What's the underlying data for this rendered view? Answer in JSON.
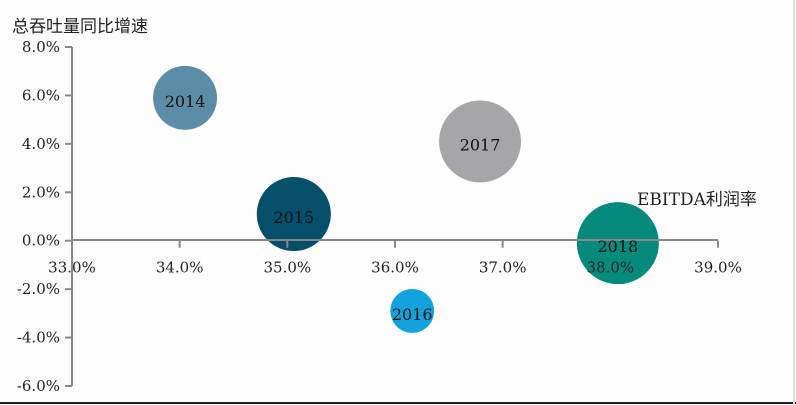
{
  "chart_data": {
    "type": "bubble",
    "title": "",
    "xlabel": "EBITDA利润率",
    "ylabel": "总吞吐量同比增速",
    "xlim": [
      33,
      39
    ],
    "ylim": [
      -6,
      8
    ],
    "x_ticks": [
      "33.0%",
      "34.0%",
      "35.0%",
      "36.0%",
      "37.0%",
      "38.0%",
      "39.0%"
    ],
    "x_tick_values": [
      33,
      34,
      35,
      36,
      37,
      38,
      39
    ],
    "y_ticks": [
      "8.0%",
      "6.0%",
      "4.0%",
      "2.0%",
      "0.0%",
      "-2.0%",
      "-4.0%",
      "-6.0%"
    ],
    "y_tick_values": [
      8,
      6,
      4,
      2,
      0,
      -2,
      -4,
      -6
    ],
    "grid": false,
    "legend": "none",
    "points": [
      {
        "label": "2014",
        "x": 34.05,
        "y": 5.9,
        "size": 1.0,
        "color": "#5b8ea6"
      },
      {
        "label": "2015",
        "x": 35.06,
        "y": 1.1,
        "size": 1.34,
        "color": "#064f6a"
      },
      {
        "label": "2016",
        "x": 36.16,
        "y": -2.9,
        "size": 0.47,
        "color": "#12a3dc"
      },
      {
        "label": "2017",
        "x": 36.79,
        "y": 4.1,
        "size": 1.64,
        "color": "#a6a6a8"
      },
      {
        "label": "2018",
        "x": 38.07,
        "y": -0.1,
        "size": 1.64,
        "color": "#068a7c"
      }
    ]
  }
}
